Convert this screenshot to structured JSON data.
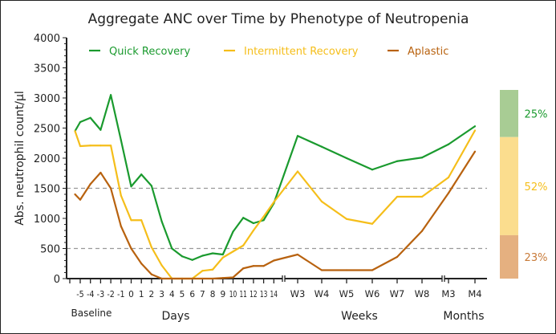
{
  "chart_data": {
    "type": "line",
    "title": "Aggregate ANC over Time by Phenotype of Neutropenia",
    "ylabel": "Abs. neutrophil count/µl",
    "ylim": [
      0,
      4000
    ],
    "yticks": [
      0,
      500,
      1000,
      1500,
      2000,
      2500,
      3000,
      3500,
      4000
    ],
    "reference_lines": [
      500,
      1500
    ],
    "categories": [
      "",
      "-5",
      "-4",
      "-3",
      "-2",
      "-1",
      "0",
      "1",
      "2",
      "3",
      "4",
      "5",
      "6",
      "7",
      "8",
      "9",
      "10",
      "11",
      "12",
      "13",
      "14",
      "W3",
      "W4",
      "W5",
      "W6",
      "W7",
      "W8",
      "M3",
      "M4"
    ],
    "group_labels": [
      "Baseline",
      "Days",
      "Weeks",
      "Months"
    ],
    "legend_position": "top",
    "series": [
      {
        "name": "Quick Recovery",
        "color": "#1a9a2e",
        "values": [
          2450,
          2600,
          2670,
          2470,
          3050,
          2300,
          1530,
          1730,
          1540,
          950,
          500,
          370,
          310,
          380,
          420,
          400,
          780,
          1010,
          920,
          970,
          1250,
          2370,
          2190,
          2000,
          1810,
          1950,
          2010,
          2230,
          2530
        ]
      },
      {
        "name": "Intermittent Recovery",
        "color": "#f5be1a",
        "values": [
          2450,
          2200,
          2210,
          2210,
          2210,
          1380,
          970,
          970,
          520,
          220,
          0,
          0,
          0,
          130,
          150,
          350,
          450,
          550,
          800,
          1030,
          1270,
          1780,
          1280,
          990,
          910,
          1360,
          1360,
          1680,
          2460
        ]
      },
      {
        "name": "Aplastic",
        "color": "#b8620f",
        "values": [
          1400,
          1310,
          1570,
          1760,
          1500,
          870,
          500,
          250,
          70,
          0,
          0,
          0,
          0,
          0,
          0,
          10,
          20,
          170,
          210,
          210,
          300,
          400,
          140,
          140,
          140,
          360,
          790,
          1420,
          2110
        ]
      }
    ],
    "proportions": [
      {
        "label": "25%",
        "value": 25,
        "color": "#1a9a2e",
        "fill": "#a8cc94"
      },
      {
        "label": "52%",
        "value": 52,
        "color": "#f5be1a",
        "fill": "#fbdd8e"
      },
      {
        "label": "23%",
        "value": 23,
        "color": "#c87a38",
        "fill": "#e5b080"
      }
    ]
  }
}
